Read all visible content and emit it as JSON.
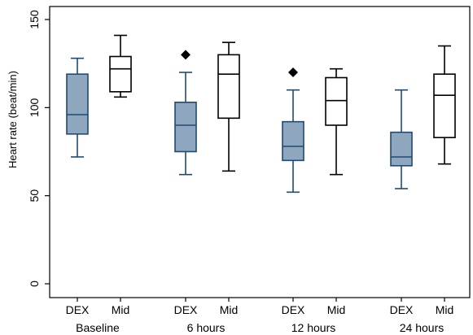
{
  "chart_data": {
    "type": "box",
    "title": "",
    "xlabel": "",
    "ylabel": "Heart rate (beat/min)",
    "ylim": [
      0,
      150
    ],
    "yticks": [
      0,
      50,
      100,
      150
    ],
    "grid": false,
    "groups": [
      "Baseline",
      "6 hours",
      "12 hours",
      "24 hours"
    ],
    "subcategories": [
      "DEX",
      "Mid"
    ],
    "colors": {
      "DEX_fill": "#8fa6bf",
      "DEX_stroke": "#1f4a73",
      "Mid_fill": "#ffffff",
      "Mid_stroke": "#000000",
      "outlier": "#000000"
    },
    "boxes": [
      {
        "group": "Baseline",
        "subcategory": "DEX",
        "whisker_low": 72,
        "q1": 85,
        "median": 96,
        "q3": 119,
        "whisker_high": 128,
        "outliers": []
      },
      {
        "group": "Baseline",
        "subcategory": "Mid",
        "whisker_low": 106,
        "q1": 109,
        "median": 122,
        "q3": 129,
        "whisker_high": 141,
        "outliers": []
      },
      {
        "group": "6 hours",
        "subcategory": "DEX",
        "whisker_low": 62,
        "q1": 75,
        "median": 90,
        "q3": 103,
        "whisker_high": 120,
        "outliers": [
          130
        ]
      },
      {
        "group": "6 hours",
        "subcategory": "Mid",
        "whisker_low": 64,
        "q1": 94,
        "median": 119,
        "q3": 130,
        "whisker_high": 137,
        "outliers": []
      },
      {
        "group": "12 hours",
        "subcategory": "DEX",
        "whisker_low": 52,
        "q1": 70,
        "median": 78,
        "q3": 92,
        "whisker_high": 110,
        "outliers": [
          120
        ]
      },
      {
        "group": "12 hours",
        "subcategory": "Mid",
        "whisker_low": 62,
        "q1": 90,
        "median": 104,
        "q3": 117,
        "whisker_high": 122,
        "outliers": []
      },
      {
        "group": "24 hours",
        "subcategory": "DEX",
        "whisker_low": 54,
        "q1": 67,
        "median": 72,
        "q3": 86,
        "whisker_high": 110,
        "outliers": []
      },
      {
        "group": "24 hours",
        "subcategory": "Mid",
        "whisker_low": 68,
        "q1": 83,
        "median": 107,
        "q3": 119,
        "whisker_high": 135,
        "outliers": []
      }
    ]
  }
}
